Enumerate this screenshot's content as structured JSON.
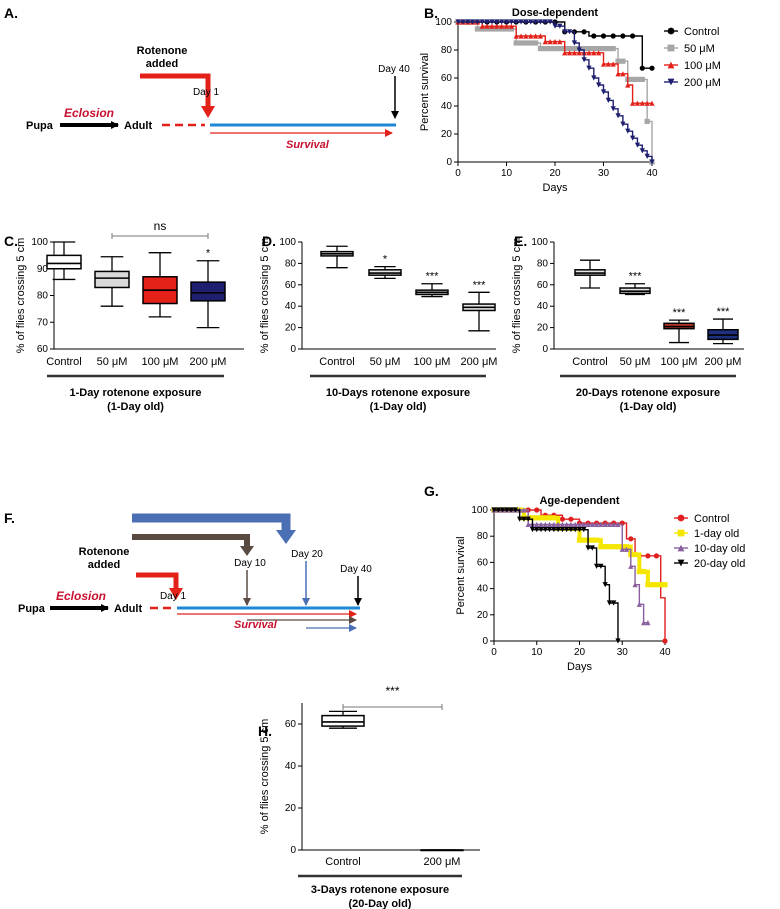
{
  "panel_labels": {
    "A": "A.",
    "B": "B.",
    "C": "C.",
    "D": "D.",
    "E": "E.",
    "F": "F.",
    "G": "G.",
    "H": "H."
  },
  "colors": {
    "black": "#000000",
    "gray": "#a6a6a6",
    "red": "#e32119",
    "navy": "#1f1f70",
    "control_box": "#ffffff",
    "box_50": "#d9d9d9",
    "box_100": "#e32119",
    "box_200": "#1f1f70",
    "d_box": "#e6e6e6",
    "e_100": "#c0392b",
    "e_200": "#1f2f80",
    "g_control": "#e02020",
    "g_1day": "#f5e600",
    "g_10day": "#8a5fa0",
    "g_20day": "#000000",
    "line_blue": "#1e88d6",
    "arrow_red": "#e32119",
    "arrow_brown": "#5a4a42",
    "arrow_blue": "#4a6fb5",
    "eclosion": "#c8102e"
  },
  "schematic_a": {
    "rotenone": "Rotenone",
    "added": "added",
    "day1": "Day 1",
    "day40": "Day 40",
    "pupa": "Pupa",
    "adult": "Adult",
    "eclosion": "Eclosion",
    "survival": "Survival"
  },
  "schematic_f": {
    "rotenone": "Rotenone",
    "added": "added",
    "day1": "Day 1",
    "day10": "Day 10",
    "day20": "Day 20",
    "day40": "Day 40",
    "pupa": "Pupa",
    "adult": "Adult",
    "eclosion": "Eclosion",
    "survival": "Survival"
  },
  "chart_data": [
    {
      "id": "B",
      "type": "line",
      "subtype": "kaplan-meier",
      "title": "Dose-dependent",
      "xlabel": "Days",
      "ylabel": "Percent survival",
      "xlim": [
        0,
        40
      ],
      "ylim": [
        0,
        100
      ],
      "xticks": [
        0,
        10,
        20,
        30,
        40
      ],
      "yticks": [
        0,
        20,
        40,
        60,
        80,
        100
      ],
      "legend_position": "right",
      "series": [
        {
          "name": "Control",
          "color": "#000000",
          "marker": "circle",
          "steps": [
            [
              0,
              100
            ],
            [
              21,
              100
            ],
            [
              22,
              93
            ],
            [
              26,
              93
            ],
            [
              27,
              90
            ],
            [
              38,
              90
            ],
            [
              38,
              67
            ],
            [
              40,
              67
            ],
            [
              40,
              67
            ]
          ]
        },
        {
          "name": "50 μM",
          "color": "#a6a6a6",
          "marker": "square",
          "steps": [
            [
              0,
              100
            ],
            [
              4,
              100
            ],
            [
              4,
              95
            ],
            [
              12,
              95
            ],
            [
              12,
              85
            ],
            [
              17,
              85
            ],
            [
              17,
              81
            ],
            [
              33,
              81
            ],
            [
              33,
              72
            ],
            [
              35,
              72
            ],
            [
              35,
              59
            ],
            [
              39,
              59
            ],
            [
              39,
              29
            ],
            [
              40,
              29
            ],
            [
              40,
              0
            ]
          ]
        },
        {
          "name": "100 μM",
          "color": "#e32119",
          "marker": "triangle-up",
          "steps": [
            [
              0,
              100
            ],
            [
              5,
              100
            ],
            [
              5,
              97
            ],
            [
              12,
              97
            ],
            [
              12,
              90
            ],
            [
              18,
              90
            ],
            [
              18,
              86
            ],
            [
              22,
              86
            ],
            [
              22,
              78
            ],
            [
              30,
              78
            ],
            [
              30,
              70
            ],
            [
              33,
              70
            ],
            [
              33,
              63
            ],
            [
              35,
              63
            ],
            [
              35,
              55
            ],
            [
              36,
              55
            ],
            [
              36,
              42
            ],
            [
              40,
              42
            ]
          ]
        },
        {
          "name": "200 μM",
          "color": "#1f1f70",
          "marker": "triangle-down",
          "steps": [
            [
              0,
              100
            ],
            [
              17,
              100
            ],
            [
              20,
              97
            ],
            [
              22,
              93
            ],
            [
              24,
              85
            ],
            [
              25,
              80
            ],
            [
              26,
              73
            ],
            [
              27,
              67
            ],
            [
              28,
              60
            ],
            [
              29,
              55
            ],
            [
              30,
              50
            ],
            [
              31,
              44
            ],
            [
              32,
              38
            ],
            [
              33,
              33
            ],
            [
              34,
              27
            ],
            [
              35,
              22
            ],
            [
              36,
              17
            ],
            [
              37,
              12
            ],
            [
              38,
              8
            ],
            [
              39,
              4
            ],
            [
              40,
              0
            ]
          ]
        }
      ]
    },
    {
      "id": "C",
      "type": "box",
      "ylabel": "% of flies crossing 5 cm",
      "ylim": [
        60,
        100
      ],
      "yticks": [
        60,
        70,
        80,
        90,
        100
      ],
      "categories": [
        "Control",
        "50 μM",
        "100 μM",
        "200 μM"
      ],
      "boxes": [
        {
          "min": 86,
          "q1": 90,
          "median": 92,
          "q3": 95,
          "max": 100,
          "color": "#ffffff",
          "sig": ""
        },
        {
          "min": 76,
          "q1": 83,
          "median": 86.5,
          "q3": 89,
          "max": 94.5,
          "color": "#d9d9d9",
          "sig": ""
        },
        {
          "min": 72,
          "q1": 77,
          "median": 82,
          "q3": 87,
          "max": 96,
          "color": "#e32119",
          "sig": ""
        },
        {
          "min": 68,
          "q1": 78,
          "median": 81,
          "q3": 85,
          "max": 93,
          "color": "#1f1f70",
          "sig": "*"
        }
      ],
      "bracket": {
        "from": 1,
        "to": 3,
        "label": "ns"
      },
      "group_label": "1-Day rotenone exposure",
      "group_sublabel": "(1-Day old)"
    },
    {
      "id": "D",
      "type": "box",
      "ylabel": "% of flies crossing 5 cm",
      "ylim": [
        0,
        100
      ],
      "yticks": [
        0,
        20,
        40,
        60,
        80,
        100
      ],
      "categories": [
        "Control",
        "50 μM",
        "100 μM",
        "200 μM"
      ],
      "boxes": [
        {
          "min": 76,
          "q1": 87,
          "median": 89,
          "q3": 91,
          "max": 96,
          "color": "#e6e6e6",
          "sig": ""
        },
        {
          "min": 66,
          "q1": 69,
          "median": 71,
          "q3": 74,
          "max": 77,
          "color": "#e6e6e6",
          "sig": "*"
        },
        {
          "min": 49,
          "q1": 51,
          "median": 53,
          "q3": 55,
          "max": 61,
          "color": "#e6e6e6",
          "sig": "***"
        },
        {
          "min": 17,
          "q1": 36,
          "median": 39,
          "q3": 42,
          "max": 53,
          "color": "#e6e6e6",
          "sig": "***"
        }
      ],
      "group_label": "10-Days rotenone exposure",
      "group_sublabel": "(1-Day old)"
    },
    {
      "id": "E",
      "type": "box",
      "ylabel": "% of flies crossing 5 cm",
      "ylim": [
        0,
        100
      ],
      "yticks": [
        0,
        20,
        40,
        60,
        80,
        100
      ],
      "categories": [
        "Control",
        "50 μM",
        "100 μM",
        "200 μM"
      ],
      "boxes": [
        {
          "min": 57,
          "q1": 69,
          "median": 71,
          "q3": 74,
          "max": 83,
          "color": "#e6e6e6",
          "sig": ""
        },
        {
          "min": 51,
          "q1": 52,
          "median": 54,
          "q3": 57,
          "max": 61,
          "color": "#e6e6e6",
          "sig": "***"
        },
        {
          "min": 6,
          "q1": 19,
          "median": 21,
          "q3": 24,
          "max": 27,
          "color": "#c0392b",
          "sig": "***"
        },
        {
          "min": 5,
          "q1": 9,
          "median": 13,
          "q3": 18,
          "max": 28,
          "color": "#1f2f80",
          "sig": "***"
        }
      ],
      "group_label": "20-Days rotenone exposure",
      "group_sublabel": "(1-Day old)"
    },
    {
      "id": "G",
      "type": "line",
      "subtype": "kaplan-meier",
      "title": "Age-dependent",
      "xlabel": "Days",
      "ylabel": "Percent survival",
      "xlim": [
        0,
        40
      ],
      "ylim": [
        0,
        100
      ],
      "xticks": [
        0,
        10,
        20,
        30,
        40
      ],
      "yticks": [
        0,
        20,
        40,
        60,
        80,
        100
      ],
      "legend_position": "right",
      "series": [
        {
          "name": "Control",
          "color": "#e02020",
          "marker": "circle",
          "steps": [
            [
              0,
              100
            ],
            [
              11,
              100
            ],
            [
              11,
              96
            ],
            [
              16,
              96
            ],
            [
              16,
              93
            ],
            [
              20,
              93
            ],
            [
              20,
              90
            ],
            [
              31,
              90
            ],
            [
              31,
              78
            ],
            [
              33,
              78
            ],
            [
              33,
              65
            ],
            [
              37,
              65
            ],
            [
              37,
              65
            ],
            [
              39,
              65
            ],
            [
              39,
              33
            ],
            [
              40,
              33
            ],
            [
              40,
              0
            ]
          ]
        },
        {
          "name": "1-day old",
          "color": "#f5e600",
          "marker": "square",
          "steps": [
            [
              0,
              100
            ],
            [
              7,
              100
            ],
            [
              7,
              94
            ],
            [
              15,
              94
            ],
            [
              15,
              86
            ],
            [
              20,
              86
            ],
            [
              20,
              77
            ],
            [
              25,
              77
            ],
            [
              25,
              72
            ],
            [
              32,
              72
            ],
            [
              32,
              66
            ],
            [
              34,
              66
            ],
            [
              34,
              53
            ],
            [
              36,
              53
            ],
            [
              36,
              43
            ],
            [
              40,
              43
            ]
          ]
        },
        {
          "name": "10-day old",
          "color": "#8a5fa0",
          "marker": "triangle-up",
          "steps": [
            [
              0,
              100
            ],
            [
              8,
              100
            ],
            [
              8,
              89
            ],
            [
              30,
              89
            ],
            [
              30,
              70
            ],
            [
              32,
              70
            ],
            [
              32,
              57
            ],
            [
              33,
              57
            ],
            [
              33,
              43
            ],
            [
              34,
              43
            ],
            [
              34,
              28
            ],
            [
              35,
              28
            ],
            [
              35,
              14
            ],
            [
              36,
              14
            ]
          ]
        },
        {
          "name": "20-day old",
          "color": "#000000",
          "marker": "triangle-down",
          "steps": [
            [
              0,
              100
            ],
            [
              6,
              100
            ],
            [
              6,
              93
            ],
            [
              9,
              93
            ],
            [
              9,
              85
            ],
            [
              22,
              85
            ],
            [
              22,
              71
            ],
            [
              24,
              71
            ],
            [
              24,
              57
            ],
            [
              26,
              57
            ],
            [
              26,
              43
            ],
            [
              27,
              43
            ],
            [
              27,
              29
            ],
            [
              29,
              29
            ],
            [
              29,
              0
            ]
          ]
        }
      ]
    },
    {
      "id": "H",
      "type": "box",
      "ylabel": "% of flies crossing 5 cm",
      "ylim": [
        0,
        70
      ],
      "yticks": [
        0,
        20,
        40,
        60
      ],
      "categories": [
        "Control",
        "200 μM"
      ],
      "boxes": [
        {
          "min": 58,
          "q1": 59,
          "median": 61,
          "q3": 64,
          "max": 66,
          "color": "#ffffff",
          "sig": ""
        },
        {
          "min": 0,
          "q1": 0,
          "median": 0,
          "q3": 0,
          "max": 0,
          "color": "#ffffff",
          "sig": ""
        }
      ],
      "bracket": {
        "from": 0,
        "to": 1,
        "label": "***"
      },
      "group_label": "3-Days rotenone exposure",
      "group_sublabel": "(20-Day old)"
    }
  ]
}
